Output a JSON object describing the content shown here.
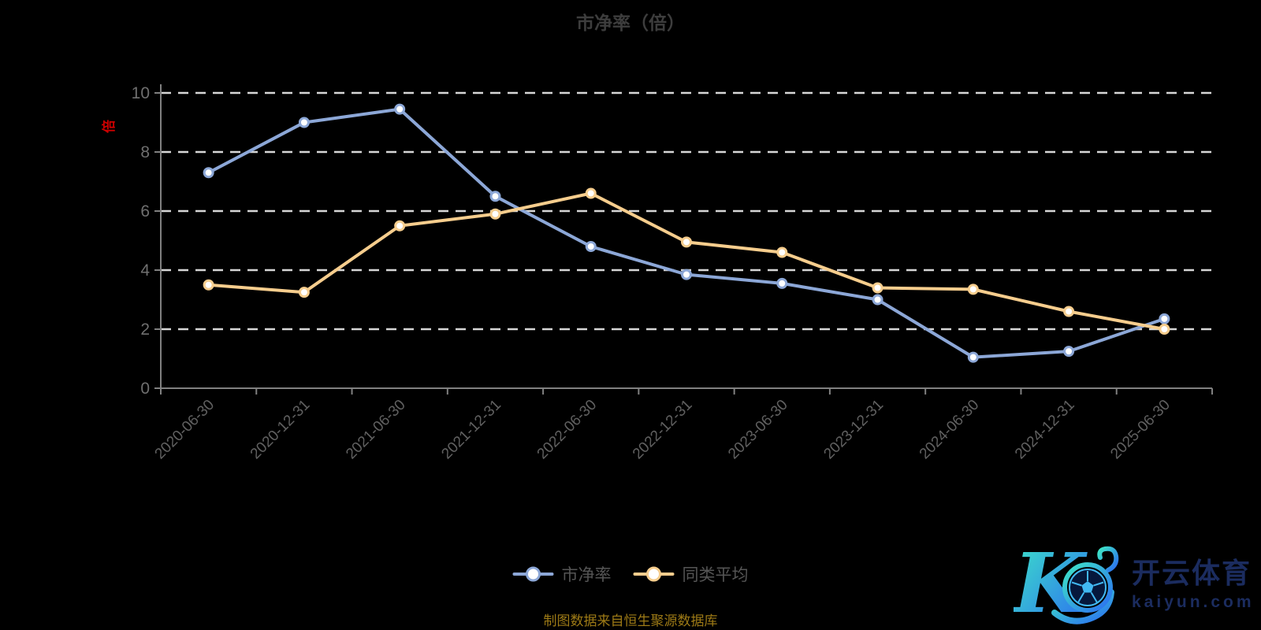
{
  "title": "市净率（倍）",
  "source_note": "制图数据来自恒生聚源数据库",
  "logo": {
    "brand_cn": "开云体育",
    "brand_domain": "kaiyun.com",
    "mark_letter": "K"
  },
  "colors": {
    "background": "#000000",
    "title_text": "#3d3d3d",
    "axis_line": "#808080",
    "grid_line": "#d6d6d6",
    "y_tick_label": "#6f6f6f",
    "x_tick_label": "#606060",
    "legend_text": "#555555",
    "unit_label": "#cc0000",
    "source_text": "#9d7a16",
    "series_pbr": "#8ca7d7",
    "series_avg": "#f6cd8d",
    "marker_fill": "#ffffff",
    "logo_text": "#1b2c5f",
    "logo_grad_start": "#3ee6c6",
    "logo_grad_end": "#2b6cf2",
    "ball_fill": "#06183c",
    "ball_line": "#41b8f2"
  },
  "chart_data": {
    "type": "line",
    "title": "市净率（倍）",
    "xlabel": "",
    "ylabel": "倍",
    "ylim": [
      0,
      10
    ],
    "yticks": [
      0,
      2,
      4,
      6,
      8,
      10
    ],
    "grid": "horizontal dashed gridlines on black background",
    "legend_position": "bottom-center",
    "categories": [
      "2020-06-30",
      "2020-12-31",
      "2021-06-30",
      "2021-12-31",
      "2022-06-30",
      "2022-12-31",
      "2023-06-30",
      "2023-12-31",
      "2024-06-30",
      "2024-12-31",
      "2025-06-30"
    ],
    "series": [
      {
        "name": "市净率",
        "color": "#8ca7d7",
        "values": [
          7.3,
          9.0,
          9.45,
          6.5,
          4.8,
          3.85,
          3.55,
          3.0,
          1.05,
          1.25,
          2.35
        ]
      },
      {
        "name": "同类平均",
        "color": "#f6cd8d",
        "values": [
          3.5,
          3.25,
          5.5,
          5.9,
          6.6,
          4.95,
          4.6,
          3.4,
          3.35,
          2.6,
          2.0
        ]
      }
    ]
  }
}
